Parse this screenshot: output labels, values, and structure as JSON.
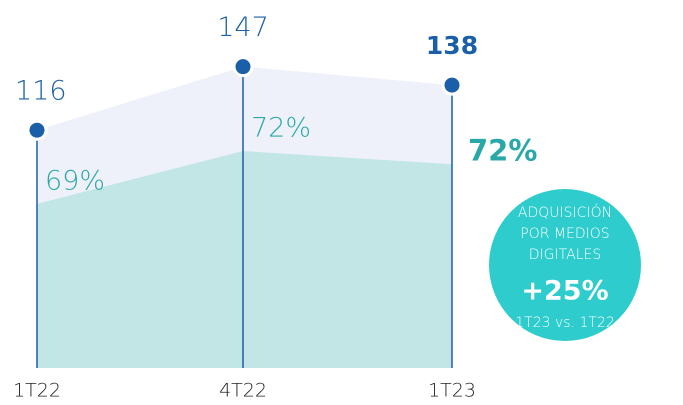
{
  "chart_data": {
    "type": "area",
    "categories": [
      "1T22",
      "4T22",
      "1T23"
    ],
    "values": [
      116,
      147,
      138
    ],
    "color": "#1b5fa8",
    "area_color": "#eef1f9",
    "share": {
      "values": [
        69,
        72,
        72
      ],
      "value_labels": [
        "69%",
        "72%",
        "72%"
      ],
      "color": "#2aa8a8",
      "area_color": "#c2e6e6"
    },
    "callout": {
      "lines": [
        "ADQUISICIÓN",
        "POR MEDIOS",
        "DIGITALES"
      ],
      "value": 25,
      "value_label": "+25%",
      "comparison": "1T23 vs. 1T22",
      "color": "#2ecccc"
    }
  }
}
